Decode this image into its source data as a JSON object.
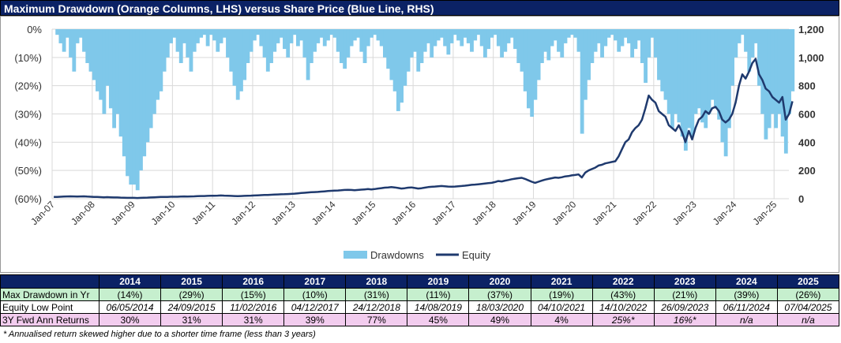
{
  "title": "Maximum Drawdown (Orange Columns, LHS) versus Share Price (Blue Line, RHS)",
  "chart_data": {
    "type": "bar+line",
    "title": "Maximum Drawdown (Orange Columns, LHS) versus Share Price (Blue Line, RHS)",
    "x_start": "Jan-07",
    "frequency": "monthly",
    "x_tick_labels": [
      "Jan-07",
      "Jan-08",
      "Jan-09",
      "Jan-10",
      "Jan-11",
      "Jan-12",
      "Jan-13",
      "Jan-14",
      "Jan-15",
      "Jan-16",
      "Jan-17",
      "Jan-18",
      "Jan-19",
      "Jan-20",
      "Jan-21",
      "Jan-22",
      "Jan-23",
      "Jan-24",
      "Jan-25"
    ],
    "y_left": {
      "ylim": [
        -60,
        0
      ],
      "tick_labels": [
        "0%",
        "(10%)",
        "(20%)",
        "(30%)",
        "(40%)",
        "(50%)",
        "(60%)"
      ]
    },
    "y_right": {
      "ylim": [
        0,
        1200
      ],
      "tick_labels": [
        "0",
        "200",
        "400",
        "600",
        "800",
        "1,000",
        "1,200"
      ]
    },
    "grid": true,
    "legend_position": "bottom",
    "series": [
      {
        "name": "Drawdowns",
        "type": "column",
        "axis": "left",
        "color": "#7fc8ea",
        "values": [
          0,
          -2,
          -5,
          -8,
          -3,
          -10,
          -15,
          -5,
          -3,
          -8,
          -12,
          -15,
          -18,
          -22,
          -25,
          -30,
          -20,
          -28,
          -35,
          -30,
          -38,
          -45,
          -52,
          -55,
          -55,
          -57,
          -50,
          -45,
          -40,
          -35,
          -30,
          -25,
          -22,
          -15,
          -10,
          -5,
          -3,
          -8,
          -12,
          -5,
          -10,
          -15,
          -8,
          -5,
          -3,
          -2,
          -6,
          -2,
          -4,
          -8,
          -5,
          -3,
          -10,
          -15,
          -20,
          -25,
          -22,
          -18,
          -12,
          -8,
          -4,
          -2,
          -6,
          -10,
          -15,
          -12,
          -8,
          -5,
          -3,
          -7,
          -10,
          -5,
          -2,
          -6,
          -4,
          -10,
          -18,
          -12,
          -8,
          -5,
          -3,
          -6,
          -4,
          -2,
          -3,
          -8,
          -12,
          -14,
          -10,
          -6,
          -4,
          -3,
          -8,
          -12,
          -6,
          -3,
          -2,
          -4,
          -6,
          -10,
          -14,
          -18,
          -22,
          -29,
          -26,
          -20,
          -15,
          -10,
          -8,
          -15,
          -12,
          -8,
          -5,
          -10,
          -6,
          -4,
          -3,
          -6,
          -9,
          -5,
          -2,
          -4,
          -6,
          -3,
          -5,
          -8,
          -4,
          -2,
          -6,
          -10,
          -7,
          -3,
          -2,
          -6,
          -10,
          -8,
          -5,
          -3,
          -7,
          -12,
          -15,
          -22,
          -28,
          -31,
          -25,
          -18,
          -12,
          -8,
          -11,
          -6,
          -4,
          -8,
          -10,
          -5,
          -3,
          -2,
          -3,
          -8,
          -37,
          -25,
          -18,
          -12,
          -8,
          -5,
          -10,
          -6,
          -3,
          -2,
          -4,
          -8,
          -6,
          -3,
          -5,
          -10,
          -7,
          -4,
          -12,
          -19,
          -10,
          -3,
          -10,
          -18,
          -22,
          -25,
          -30,
          -35,
          -30,
          -33,
          -38,
          -43,
          -35,
          -38,
          -30,
          -28,
          -33,
          -35,
          -30,
          -25,
          -28,
          -32,
          -40,
          -45,
          -35,
          -20,
          -10,
          -5,
          -2,
          -8,
          -15,
          -10,
          -5,
          -20,
          -30,
          -39,
          -35,
          -30,
          -35,
          -30,
          -38,
          -44,
          -30,
          -22
        ]
      },
      {
        "name": "Equity",
        "type": "line",
        "axis": "right",
        "color": "#1f3a6e",
        "values": [
          12,
          13,
          14,
          15,
          16,
          17,
          16,
          15,
          16,
          17,
          15,
          14,
          13,
          12,
          11,
          10,
          11,
          10,
          9,
          9,
          8,
          7,
          6,
          6,
          6,
          5,
          6,
          7,
          8,
          9,
          10,
          11,
          12,
          13,
          13,
          14,
          14,
          14,
          15,
          16,
          15,
          16,
          17,
          18,
          19,
          19,
          20,
          21,
          21,
          22,
          23,
          22,
          21,
          20,
          19,
          18,
          19,
          20,
          21,
          22,
          23,
          24,
          25,
          26,
          27,
          28,
          29,
          30,
          31,
          32,
          33,
          34,
          36,
          38,
          40,
          42,
          44,
          46,
          47,
          48,
          50,
          52,
          54,
          56,
          57,
          58,
          60,
          62,
          63,
          62,
          60,
          62,
          64,
          66,
          68,
          66,
          68,
          72,
          75,
          78,
          80,
          82,
          80,
          76,
          72,
          74,
          78,
          80,
          76,
          72,
          74,
          78,
          82,
          84,
          86,
          88,
          90,
          88,
          86,
          85,
          86,
          88,
          90,
          92,
          95,
          98,
          100,
          102,
          105,
          108,
          110,
          112,
          118,
          125,
          122,
          128,
          132,
          138,
          142,
          145,
          148,
          140,
          130,
          120,
          112,
          120,
          128,
          135,
          140,
          145,
          150,
          148,
          152,
          158,
          160,
          165,
          168,
          172,
          150,
          185,
          200,
          210,
          220,
          235,
          240,
          250,
          255,
          260,
          265,
          300,
          350,
          400,
          420,
          470,
          500,
          520,
          560,
          640,
          730,
          700,
          680,
          620,
          600,
          580,
          520,
          500,
          480,
          520,
          470,
          400,
          480,
          420,
          500,
          560,
          580,
          620,
          600,
          640,
          650,
          620,
          560,
          540,
          560,
          600,
          680,
          800,
          880,
          850,
          900,
          960,
          990,
          880,
          840,
          780,
          760,
          720,
          700,
          680,
          720,
          560,
          600,
          690
        ]
      }
    ]
  },
  "legend": {
    "drawdowns": "Drawdowns",
    "equity": "Equity"
  },
  "table": {
    "header_blank": [
      "0",
      "0"
    ],
    "years": [
      "2014",
      "2015",
      "2016",
      "2017",
      "2018",
      "2019",
      "2020",
      "2021",
      "2022",
      "2023",
      "2024",
      "2025"
    ],
    "rows": [
      {
        "label": "Max Drawdown in Yr",
        "values": [
          "(14%)",
          "(29%)",
          "(15%)",
          "(10%)",
          "(31%)",
          "(11%)",
          "(37%)",
          "(19%)",
          "(43%)",
          "(21%)",
          "(39%)",
          "(26%)"
        ]
      },
      {
        "label": "Equity Low Point",
        "values": [
          "06/05/2014",
          "24/09/2015",
          "11/02/2016",
          "04/12/2017",
          "24/12/2018",
          "14/08/2019",
          "18/03/2020",
          "04/10/2021",
          "14/10/2022",
          "26/09/2023",
          "06/11/2024",
          "07/04/2025"
        ]
      },
      {
        "label": "3Y Fwd Ann Returns",
        "values": [
          "30%",
          "31%",
          "31%",
          "39%",
          "77%",
          "45%",
          "49%",
          "4%",
          "25%*",
          "16%*",
          "n/a",
          "n/a"
        ]
      }
    ]
  },
  "footnote": "* Annualised return skewed higher due to a shorter time frame (less than 3 years)"
}
